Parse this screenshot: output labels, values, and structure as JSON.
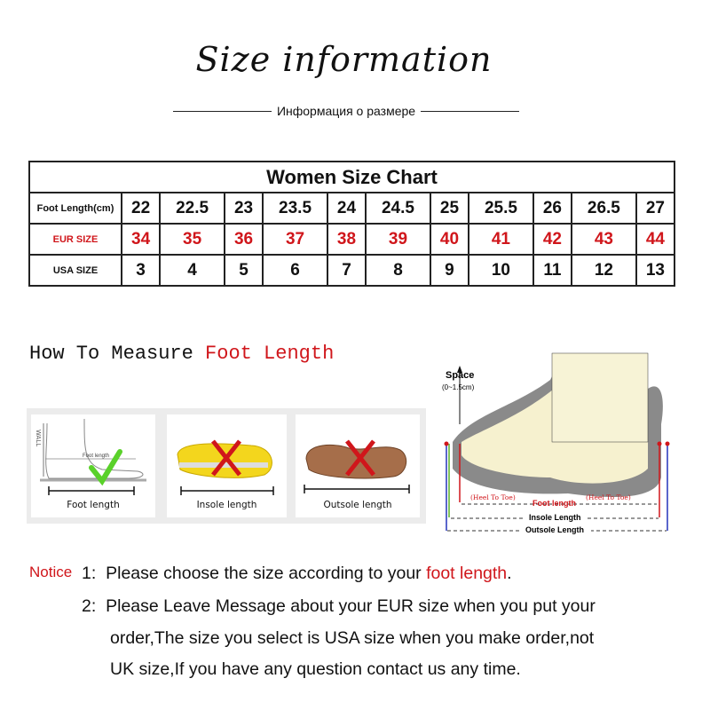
{
  "header": {
    "title": "Size information",
    "subtitle": "Информация о размере"
  },
  "size_chart": {
    "caption": "Women Size Chart",
    "rows": [
      {
        "label": "Foot Length(cm)",
        "values": [
          "22",
          "22.5",
          "23",
          "23.5",
          "24",
          "24.5",
          "25",
          "25.5",
          "26",
          "26.5",
          "27"
        ]
      },
      {
        "label": "EUR SIZE",
        "values": [
          "34",
          "35",
          "36",
          "37",
          "38",
          "39",
          "40",
          "41",
          "42",
          "43",
          "44"
        ]
      },
      {
        "label": "USA SIZE",
        "values": [
          "3",
          "4",
          "5",
          "6",
          "7",
          "8",
          "9",
          "10",
          "11",
          "12",
          "13"
        ]
      }
    ]
  },
  "measure": {
    "heading_prefix": "How To Measure ",
    "heading_highlight": "Foot Length",
    "cards": [
      {
        "label": "Foot length",
        "icon": "check-icon",
        "inner": "Foot length",
        "wall": "WALL"
      },
      {
        "label": "Insole length",
        "icon": "cross-icon"
      },
      {
        "label": "Outsole length",
        "icon": "cross-icon"
      }
    ],
    "diagram": {
      "space": "Space",
      "space_range": "(0~1.5cm)",
      "heel_to_toe": "(Heel To Toe)",
      "foot_length": "Foot length",
      "insole_length": "Insole Length",
      "outsole_length": "Outsole Length"
    }
  },
  "notice": {
    "label": "Notice",
    "items": [
      {
        "num": "1:",
        "text": "Please choose the size according to your ",
        "highlight": "foot length",
        "after": "."
      },
      {
        "num": "2:",
        "lines": [
          "Please Leave Message about your EUR size when you put your",
          "order,The size you select is USA size when you make order,not",
          "UK size,If you have any question  contact us any time."
        ]
      }
    ]
  },
  "colors": {
    "accent": "#d0161b",
    "check": "#5ad12a"
  }
}
